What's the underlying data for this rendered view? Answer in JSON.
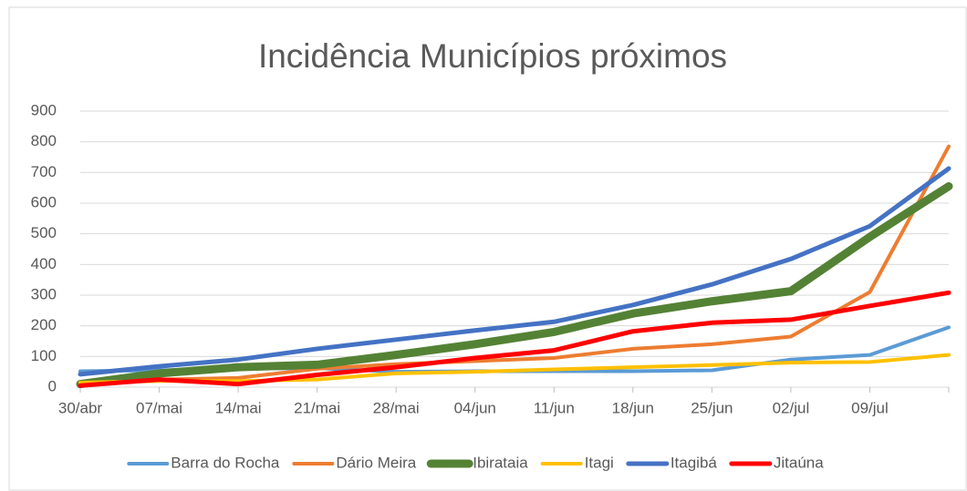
{
  "chart_data": {
    "type": "line",
    "title": "Incidência Municípios próximos",
    "categories": [
      "30/abr",
      "07/mai",
      "14/mai",
      "21/mai",
      "28/mai",
      "04/jun",
      "11/jun",
      "18/jun",
      "25/jun",
      "02/jul",
      "09/jul",
      null
    ],
    "series": [
      {
        "name": "Barra do Rocha",
        "color": "#5b9bd5",
        "width": 4,
        "values": [
          52,
          55,
          60,
          62,
          50,
          52,
          52,
          52,
          55,
          90,
          105,
          195
        ]
      },
      {
        "name": "Dário Meira",
        "color": "#ed7d31",
        "width": 4,
        "values": [
          10,
          25,
          30,
          60,
          75,
          85,
          95,
          125,
          140,
          165,
          310,
          785
        ]
      },
      {
        "name": "Ibirataia",
        "color": "#548235",
        "width": 9,
        "values": [
          10,
          45,
          65,
          73,
          105,
          140,
          180,
          240,
          280,
          313,
          490,
          655
        ]
      },
      {
        "name": "Itagi",
        "color": "#ffc000",
        "width": 4,
        "values": [
          15,
          20,
          20,
          25,
          45,
          50,
          58,
          65,
          72,
          80,
          82,
          105
        ]
      },
      {
        "name": "Itagibá",
        "color": "#4472c4",
        "width": 5,
        "values": [
          42,
          68,
          90,
          125,
          155,
          185,
          213,
          268,
          335,
          418,
          525,
          713
        ]
      },
      {
        "name": "Jitaúna",
        "color": "#ff0000",
        "width": 5,
        "values": [
          5,
          25,
          10,
          40,
          65,
          95,
          120,
          182,
          210,
          220,
          265,
          308
        ]
      }
    ],
    "ylim": [
      0,
      900
    ],
    "yticks": [
      0,
      100,
      200,
      300,
      400,
      500,
      600,
      700,
      800,
      900
    ],
    "grid": true,
    "legend": "bottom"
  }
}
